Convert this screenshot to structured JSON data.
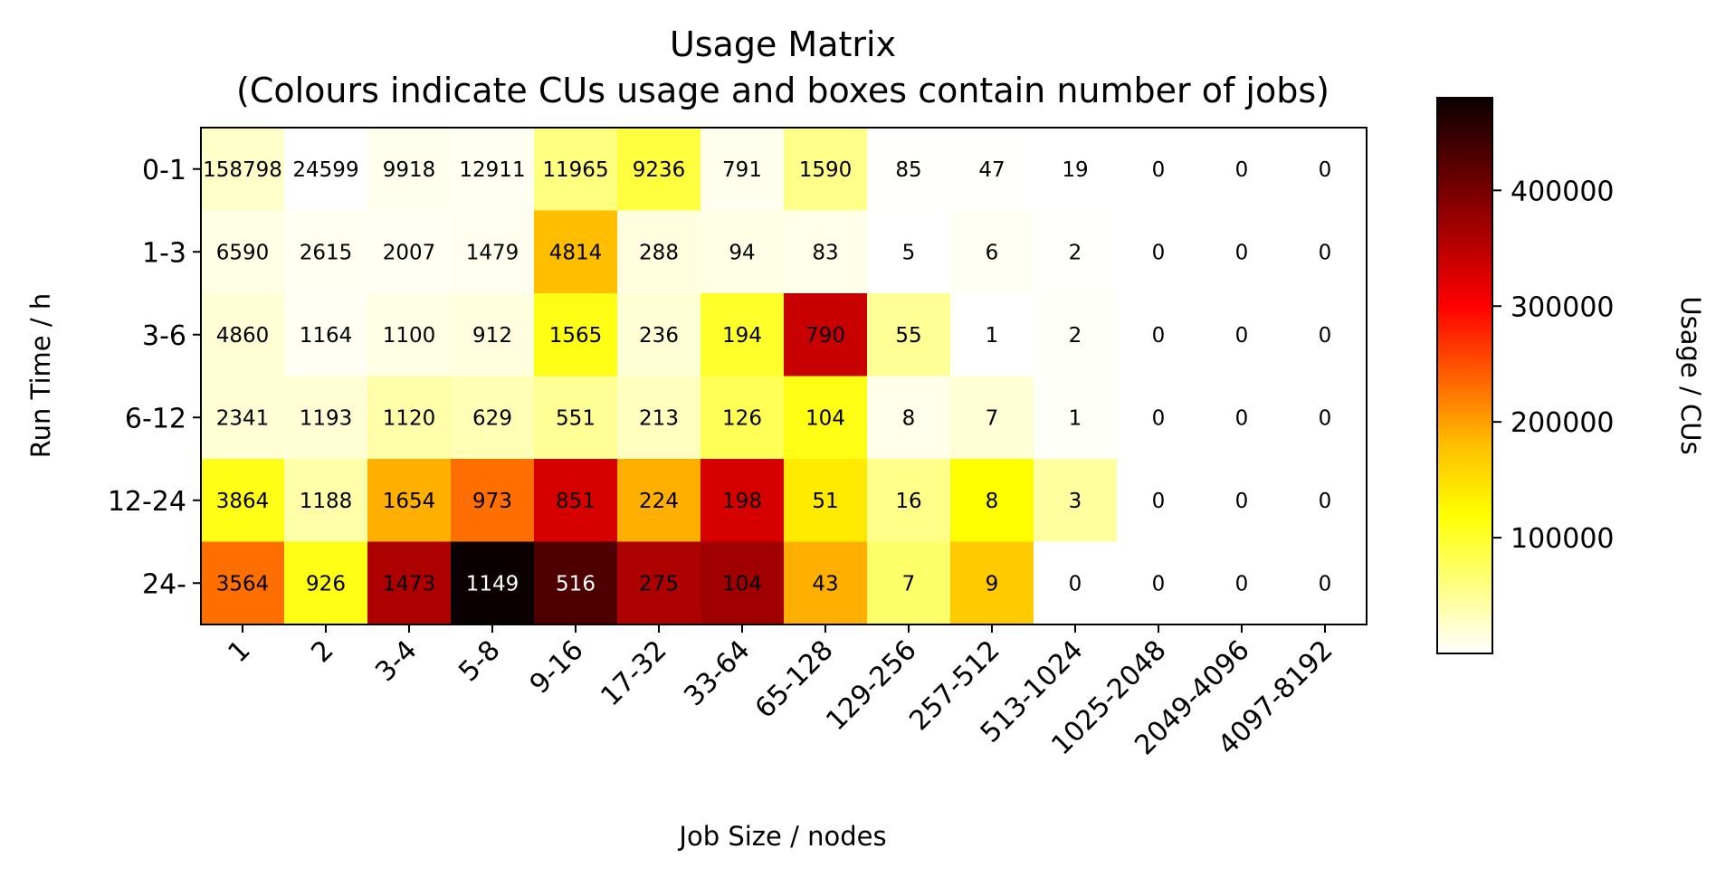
{
  "chart_data": {
    "type": "heatmap",
    "title": "Usage Matrix",
    "subtitle": "(Colours indicate CUs usage and boxes contain number of jobs)",
    "xlabel": "Job Size / nodes",
    "ylabel": "Run Time / h",
    "colorbar_label": "Usage / CUs",
    "colormap": "hot_r",
    "colorbar_range": [
      0,
      480000
    ],
    "colorbar_ticks": [
      "100000",
      "200000",
      "300000",
      "400000"
    ],
    "colorbar_tick_values": [
      100000,
      200000,
      300000,
      400000
    ],
    "x_categories": [
      "1",
      "2",
      "3-4",
      "5-8",
      "9-16",
      "17-32",
      "33-64",
      "65-128",
      "129-256",
      "257-512",
      "513-1024",
      "1025-2048",
      "2049-4096",
      "4097-8192"
    ],
    "y_categories": [
      "0-1",
      "1-3",
      "3-6",
      "6-12",
      "12-24",
      "24-"
    ],
    "jobs": [
      [
        "158798",
        "24599",
        "9918",
        "12911",
        "11965",
        "9236",
        "791",
        "1590",
        "85",
        "47",
        "19",
        "0",
        "0",
        "0"
      ],
      [
        "6590",
        "2615",
        "2007",
        "1479",
        "4814",
        "288",
        "94",
        "83",
        "5",
        "6",
        "2",
        "0",
        "0",
        "0"
      ],
      [
        "4860",
        "1164",
        "1100",
        "912",
        "1565",
        "236",
        "194",
        "790",
        "55",
        "1",
        "2",
        "0",
        "0",
        "0"
      ],
      [
        "2341",
        "1193",
        "1120",
        "629",
        "551",
        "213",
        "126",
        "104",
        "8",
        "7",
        "1",
        "0",
        "0",
        "0"
      ],
      [
        "3864",
        "1188",
        "1654",
        "973",
        "851",
        "224",
        "198",
        "51",
        "16",
        "8",
        "3",
        "0",
        "0",
        "0"
      ],
      [
        "3564",
        "926",
        "1473",
        "1149",
        "516",
        "275",
        "104",
        "43",
        "7",
        "9",
        "0",
        "0",
        "0",
        "0"
      ]
    ],
    "usage": [
      [
        25000,
        0,
        8000,
        6000,
        60000,
        90000,
        8000,
        55000,
        500,
        300,
        200,
        0,
        0,
        0
      ],
      [
        12000,
        6000,
        5000,
        7000,
        180000,
        15000,
        12000,
        10000,
        200,
        5000,
        2000,
        0,
        0,
        0
      ],
      [
        20000,
        5000,
        12000,
        15000,
        110000,
        20000,
        100000,
        340000,
        50000,
        0,
        3000,
        0,
        0,
        0
      ],
      [
        20000,
        20000,
        40000,
        35000,
        50000,
        30000,
        80000,
        110000,
        10000,
        20000,
        3000,
        0,
        0,
        0
      ],
      [
        110000,
        40000,
        190000,
        230000,
        330000,
        190000,
        330000,
        140000,
        55000,
        120000,
        45000,
        0,
        0,
        0
      ],
      [
        230000,
        110000,
        360000,
        480000,
        430000,
        360000,
        370000,
        190000,
        70000,
        170000,
        0,
        0,
        0,
        0
      ]
    ]
  }
}
